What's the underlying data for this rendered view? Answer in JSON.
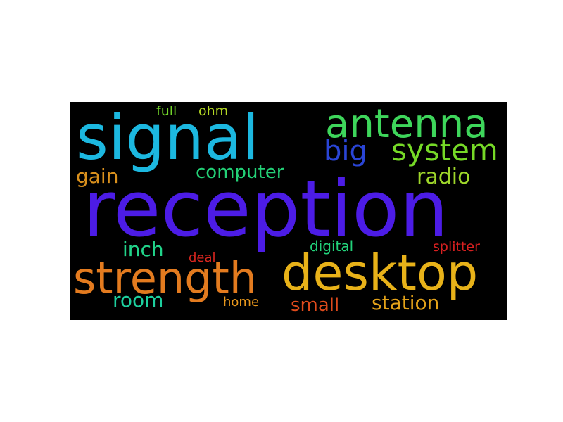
{
  "words": [
    {
      "text": "reception",
      "color": "#4c1ce6"
    },
    {
      "text": "signal",
      "color": "#1cb8e0"
    },
    {
      "text": "desktop",
      "color": "#e8b219"
    },
    {
      "text": "strength",
      "color": "#e37b1f"
    },
    {
      "text": "antenna",
      "color": "#3ed65b"
    },
    {
      "text": "system",
      "color": "#76d927"
    },
    {
      "text": "big",
      "color": "#2a45d6"
    },
    {
      "text": "computer",
      "color": "#23d177"
    },
    {
      "text": "gain",
      "color": "#d9901d"
    },
    {
      "text": "radio",
      "color": "#9ed62a"
    },
    {
      "text": "inch",
      "color": "#21d48a"
    },
    {
      "text": "room",
      "color": "#1dcf9e"
    },
    {
      "text": "small",
      "color": "#e04b1c"
    },
    {
      "text": "station",
      "color": "#e3a219"
    },
    {
      "text": "digital",
      "color": "#22d27a"
    },
    {
      "text": "splitter",
      "color": "#d82020"
    },
    {
      "text": "deal",
      "color": "#d9261f"
    },
    {
      "text": "home",
      "color": "#e6961c"
    },
    {
      "text": "full",
      "color": "#72d42a"
    },
    {
      "text": "ohm",
      "color": "#b4d824"
    }
  ]
}
